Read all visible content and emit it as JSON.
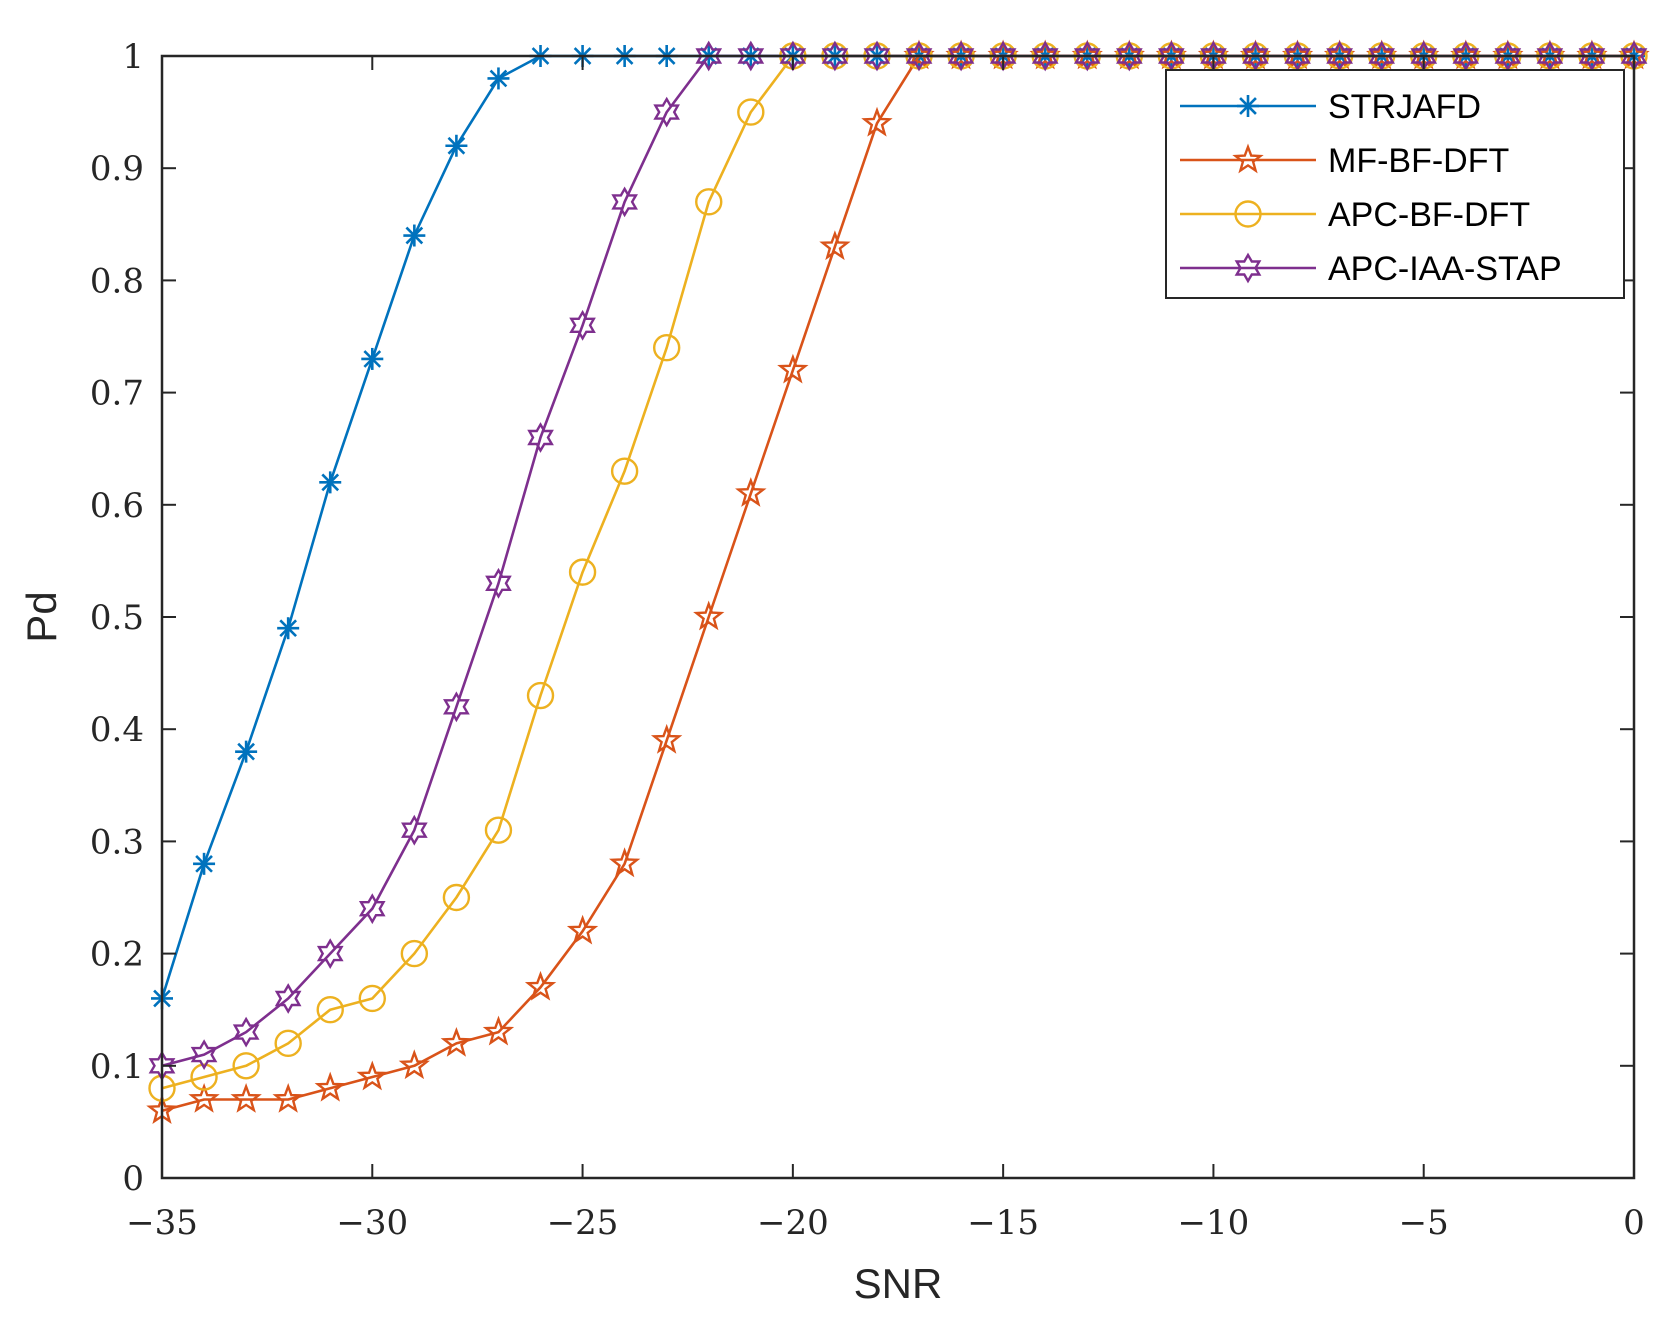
{
  "chart_data": {
    "type": "line",
    "title": "",
    "xlabel": "SNR",
    "ylabel": "Pd",
    "xlim": [
      -35,
      0
    ],
    "ylim": [
      0,
      1
    ],
    "xticks": [
      -35,
      -30,
      -25,
      -20,
      -15,
      -10,
      -5,
      0
    ],
    "xtick_labels": [
      "−35",
      "−30",
      "−25",
      "−20",
      "−15",
      "−10",
      "−5",
      "0"
    ],
    "yticks": [
      0,
      0.1,
      0.2,
      0.3,
      0.4,
      0.5,
      0.6,
      0.7,
      0.8,
      0.9,
      1
    ],
    "ytick_labels": [
      "0",
      "0.1",
      "0.2",
      "0.3",
      "0.4",
      "0.5",
      "0.6",
      "0.7",
      "0.8",
      "0.9",
      "1"
    ],
    "grid": false,
    "legend_position": "top-right",
    "x": [
      -35,
      -34,
      -33,
      -32,
      -31,
      -30,
      -29,
      -28,
      -27,
      -26,
      -25,
      -24,
      -23,
      -22,
      -21,
      -20,
      -19,
      -18,
      -17,
      -16,
      -15,
      -14,
      -13,
      -12,
      -11,
      -10,
      -9,
      -8,
      -7,
      -6,
      -5,
      -4,
      -3,
      -2,
      -1,
      0
    ],
    "series": [
      {
        "name": "STRJAFD",
        "color": "#0072BD",
        "marker": "asterisk",
        "values": [
          0.16,
          0.28,
          0.38,
          0.49,
          0.62,
          0.73,
          0.84,
          0.92,
          0.98,
          1,
          1,
          1,
          1,
          1,
          1,
          1,
          1,
          1,
          1,
          1,
          1,
          1,
          1,
          1,
          1,
          1,
          1,
          1,
          1,
          1,
          1,
          1,
          1,
          1,
          1,
          1
        ]
      },
      {
        "name": "MF-BF-DFT",
        "color": "#D95319",
        "marker": "pentagram",
        "values": [
          0.06,
          0.07,
          0.07,
          0.07,
          0.08,
          0.09,
          0.1,
          0.12,
          0.13,
          0.17,
          0.22,
          0.28,
          0.39,
          0.5,
          0.61,
          0.72,
          0.83,
          0.94,
          1,
          1,
          1,
          1,
          1,
          1,
          1,
          1,
          1,
          1,
          1,
          1,
          1,
          1,
          1,
          1,
          1,
          1
        ]
      },
      {
        "name": "APC-BF-DFT",
        "color": "#EDB120",
        "marker": "circle",
        "values": [
          0.08,
          0.09,
          0.1,
          0.12,
          0.15,
          0.16,
          0.2,
          0.25,
          0.31,
          0.43,
          0.54,
          0.63,
          0.74,
          0.87,
          0.95,
          1,
          1,
          1,
          1,
          1,
          1,
          1,
          1,
          1,
          1,
          1,
          1,
          1,
          1,
          1,
          1,
          1,
          1,
          1,
          1,
          1
        ]
      },
      {
        "name": "APC-IAA-STAP",
        "color": "#7E2F8E",
        "marker": "hexagram",
        "values": [
          0.1,
          0.11,
          0.13,
          0.16,
          0.2,
          0.24,
          0.31,
          0.42,
          0.53,
          0.66,
          0.76,
          0.87,
          0.95,
          1,
          1,
          1,
          1,
          1,
          1,
          1,
          1,
          1,
          1,
          1,
          1,
          1,
          1,
          1,
          1,
          1,
          1,
          1,
          1,
          1,
          1,
          1
        ]
      }
    ]
  }
}
